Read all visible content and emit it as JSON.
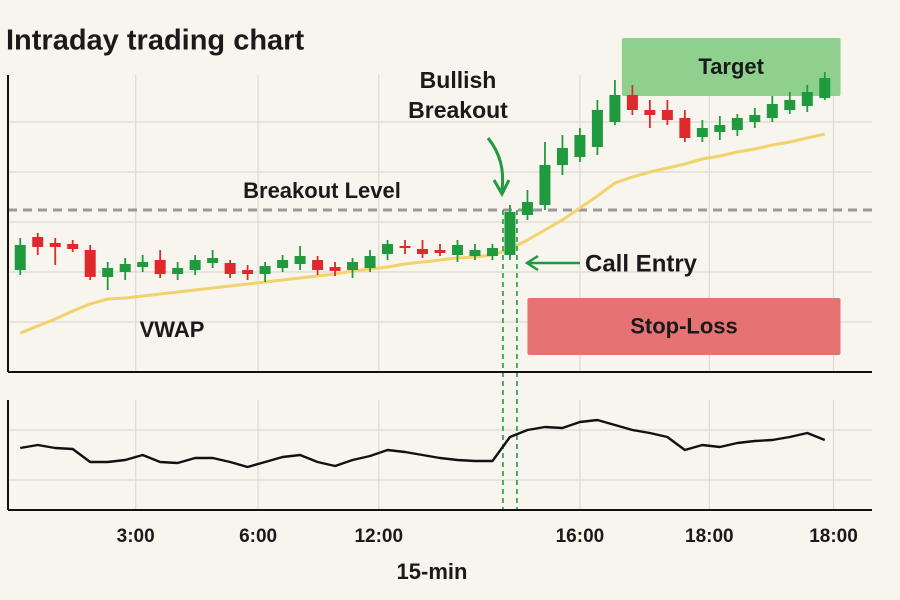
{
  "chart_data": {
    "type": "candlestick",
    "title": "Intraday trading chart",
    "x_label": "15-min",
    "xlim": [
      -0.7,
      48.7
    ],
    "xticks": [
      {
        "value": 6.6,
        "label": "3:00"
      },
      {
        "value": 13.6,
        "label": "6:00"
      },
      {
        "value": 20.5,
        "label": "12:00"
      },
      {
        "value": 32,
        "label": "16:00"
      },
      {
        "value": 39.4,
        "label": "18:00"
      },
      {
        "value": 46.5,
        "label": "18:00"
      }
    ],
    "ylim": [
      0,
      334
    ],
    "yticks": [
      50,
      100,
      150,
      200,
      250
    ],
    "grid": true,
    "up_color": "#1f9a3f",
    "down_color": "#e0292d",
    "candles": {
      "open": [
        102,
        135,
        129,
        128,
        122,
        95,
        100,
        105,
        112,
        98,
        102,
        109,
        109,
        102,
        98,
        104,
        108,
        112,
        105,
        102,
        104,
        118,
        126,
        123,
        122,
        117,
        116,
        116,
        117,
        157,
        167,
        207,
        215,
        225,
        250,
        277,
        262,
        262,
        254,
        235,
        240,
        242,
        250,
        254,
        262,
        266,
        274
      ],
      "close": [
        127,
        125,
        125,
        123,
        95,
        104,
        108,
        110,
        98,
        104,
        112,
        114,
        98,
        98,
        106,
        112,
        116,
        102,
        101,
        110,
        116,
        128,
        124,
        118,
        119,
        127,
        122,
        124,
        160,
        170,
        207,
        224,
        237,
        262,
        277,
        262,
        257,
        252,
        234,
        244,
        247,
        254,
        257,
        268,
        272,
        280,
        294
      ],
      "high": [
        134,
        139,
        134,
        132,
        127,
        110,
        114,
        117,
        122,
        110,
        117,
        122,
        112,
        107,
        110,
        117,
        126,
        116,
        110,
        114,
        122,
        132,
        132,
        132,
        128,
        132,
        128,
        128,
        167,
        182,
        230,
        237,
        244,
        272,
        292,
        287,
        272,
        272,
        262,
        252,
        256,
        258,
        264,
        276,
        280,
        287,
        300
      ],
      "low": [
        97,
        117,
        107,
        120,
        92,
        82,
        92,
        100,
        94,
        92,
        97,
        104,
        94,
        92,
        90,
        100,
        102,
        97,
        96,
        94,
        100,
        112,
        118,
        114,
        116,
        110,
        112,
        112,
        112,
        152,
        162,
        197,
        210,
        217,
        247,
        257,
        244,
        247,
        230,
        230,
        232,
        236,
        244,
        250,
        258,
        260,
        272
      ]
    },
    "vwap": {
      "name": "VWAP",
      "color": "#f2d36b",
      "values": [
        39,
        46,
        53,
        61,
        68,
        73,
        74,
        76,
        78,
        80,
        82,
        84,
        86,
        88,
        90,
        92,
        94,
        96,
        98,
        101,
        103,
        105,
        108,
        110,
        112,
        114,
        115,
        117,
        123,
        132,
        142,
        152,
        164,
        176,
        189,
        195,
        200,
        204,
        208,
        213,
        216,
        220,
        223,
        227,
        230,
        234,
        238
      ]
    },
    "breakout_level": {
      "label": "Breakout Level",
      "value": 162,
      "color": "#999999"
    },
    "bullish_breakout": {
      "text": [
        "Bullish",
        "Breakout"
      ],
      "index": 28
    },
    "entry_markers": {
      "values": [
        27.6,
        28.4
      ],
      "color": "#1f9a3f"
    },
    "call_entry": {
      "label": "Call Entry",
      "value": 110
    },
    "target": {
      "label": "Target",
      "range": [
        276,
        334
      ],
      "x_range": [
        34.4,
        46.9
      ],
      "color": "#8fd08f"
    },
    "stop_loss": {
      "label": "Stop-Loss",
      "range": [
        17,
        74
      ],
      "x_range": [
        29,
        46.9
      ],
      "color": "#e57373"
    },
    "indicator": {
      "ylim": [
        0,
        110
      ],
      "yticks": [
        30,
        80
      ],
      "color": "#111111",
      "values": [
        62,
        65,
        62,
        61,
        48,
        48,
        50,
        55,
        48,
        47,
        52,
        52,
        48,
        43,
        48,
        53,
        55,
        48,
        44,
        50,
        54,
        60,
        58,
        55,
        52,
        50,
        49,
        49,
        73,
        80,
        83,
        82,
        88,
        90,
        85,
        80,
        77,
        73,
        60,
        65,
        63,
        67,
        69,
        70,
        73,
        77,
        70
      ]
    }
  }
}
